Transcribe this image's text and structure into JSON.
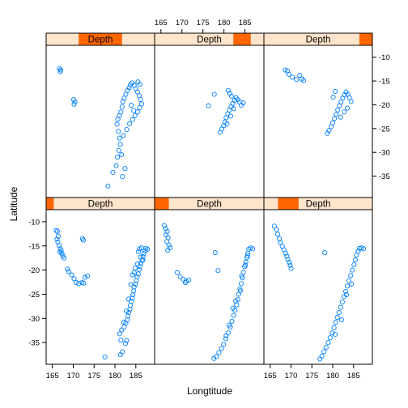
{
  "chart_data": {
    "type": "scatter",
    "title": "",
    "xlabel": "Longtitude",
    "ylabel": "Latitude",
    "strip_label": "Depth",
    "xlim": [
      163.5,
      189.5
    ],
    "ylim": [
      -39.5,
      -7.5
    ],
    "x_ticks": [
      165,
      170,
      175,
      180,
      185
    ],
    "y_ticks": [
      -10,
      -15,
      -20,
      -25,
      -30,
      -35
    ],
    "colors": {
      "points": "#0080ff",
      "strip_background": "#ffe5cc",
      "strip_range": "#ff6600",
      "axis": "#000000"
    },
    "layout": "3 columns x 2 rows, panels filled from bottom-left",
    "panels": [
      {
        "strip_range": [
          0.0,
          0.07
        ],
        "points": [
          [
            165.9,
            -11.8
          ],
          [
            166.2,
            -12.0
          ],
          [
            166.4,
            -13.0
          ],
          [
            166.1,
            -13.6
          ],
          [
            166.3,
            -14.2
          ],
          [
            166.6,
            -14.9
          ],
          [
            166.9,
            -15.6
          ],
          [
            167.1,
            -16.0
          ],
          [
            167.3,
            -16.6
          ],
          [
            167.5,
            -17.1
          ],
          [
            166.8,
            -16.3
          ],
          [
            167.8,
            -17.5
          ],
          [
            168.6,
            -19.8
          ],
          [
            168.9,
            -20.3
          ],
          [
            169.6,
            -21.0
          ],
          [
            170.2,
            -21.8
          ],
          [
            170.7,
            -22.6
          ],
          [
            171.3,
            -22.8
          ],
          [
            172.1,
            -22.6
          ],
          [
            172.5,
            -22.7
          ],
          [
            172.8,
            -21.5
          ],
          [
            173.4,
            -21.2
          ],
          [
            172.2,
            -13.5
          ],
          [
            172.4,
            -13.8
          ],
          [
            181.3,
            -37.5
          ],
          [
            181.8,
            -36.9
          ],
          [
            182.5,
            -35.2
          ],
          [
            182.8,
            -34.6
          ],
          [
            181.1,
            -33.2
          ],
          [
            181.6,
            -32.4
          ],
          [
            182.2,
            -31.8
          ],
          [
            182.6,
            -31.0
          ],
          [
            183.0,
            -30.3
          ],
          [
            183.1,
            -29.5
          ],
          [
            183.3,
            -28.8
          ],
          [
            183.6,
            -28.1
          ],
          [
            183.7,
            -27.3
          ],
          [
            183.9,
            -26.5
          ],
          [
            184.1,
            -25.8
          ],
          [
            184.3,
            -25.1
          ],
          [
            184.5,
            -24.3
          ],
          [
            184.6,
            -23.5
          ],
          [
            184.9,
            -22.9
          ],
          [
            185.1,
            -22.2
          ],
          [
            185.3,
            -21.4
          ],
          [
            185.6,
            -20.8
          ],
          [
            185.8,
            -19.9
          ],
          [
            186.0,
            -19.3
          ],
          [
            186.2,
            -18.6
          ],
          [
            186.5,
            -18.0
          ],
          [
            186.7,
            -17.2
          ],
          [
            186.9,
            -16.6
          ],
          [
            187.2,
            -16.0
          ],
          [
            187.4,
            -15.5
          ],
          [
            185.9,
            -15.6
          ],
          [
            186.4,
            -15.4
          ],
          [
            187.8,
            -15.7
          ],
          [
            186.7,
            -17.9
          ],
          [
            185.4,
            -18.7
          ],
          [
            184.8,
            -19.6
          ],
          [
            184.2,
            -21.0
          ],
          [
            183.8,
            -23.0
          ],
          [
            183.3,
            -26.0
          ],
          [
            182.7,
            -28.5
          ],
          [
            182.1,
            -30.8
          ],
          [
            181.4,
            -34.5
          ],
          [
            177.6,
            -38.0
          ],
          [
            185.6,
            -16.2
          ],
          [
            186.1,
            -17.3
          ],
          [
            184.6,
            -20.5
          ]
        ]
      },
      {
        "strip_range": [
          0.0,
          0.13
        ],
        "points": [
          [
            165.8,
            -10.8
          ],
          [
            166.1,
            -11.4
          ],
          [
            166.5,
            -12.0
          ],
          [
            166.2,
            -12.7
          ],
          [
            166.7,
            -13.3
          ],
          [
            166.4,
            -14.1
          ],
          [
            166.9,
            -14.8
          ],
          [
            167.2,
            -15.4
          ],
          [
            166.6,
            -15.9
          ],
          [
            168.9,
            -20.5
          ],
          [
            169.6,
            -21.4
          ],
          [
            170.3,
            -21.9
          ],
          [
            171.0,
            -22.3
          ],
          [
            171.6,
            -22.1
          ],
          [
            170.8,
            -22.6
          ],
          [
            177.9,
            -16.4
          ],
          [
            178.6,
            -20.1
          ],
          [
            177.6,
            -38.3
          ],
          [
            178.2,
            -37.9
          ],
          [
            178.8,
            -37.1
          ],
          [
            179.4,
            -36.2
          ],
          [
            179.9,
            -35.4
          ],
          [
            180.4,
            -34.2
          ],
          [
            181.0,
            -33.0
          ],
          [
            181.5,
            -31.8
          ],
          [
            181.9,
            -30.6
          ],
          [
            182.3,
            -29.4
          ],
          [
            182.6,
            -28.3
          ],
          [
            183.0,
            -27.2
          ],
          [
            183.3,
            -26.1
          ],
          [
            183.5,
            -25.0
          ],
          [
            183.8,
            -23.9
          ],
          [
            184.1,
            -22.8
          ],
          [
            184.4,
            -21.6
          ],
          [
            184.6,
            -20.5
          ],
          [
            184.9,
            -19.3
          ],
          [
            185.2,
            -18.3
          ],
          [
            185.5,
            -17.4
          ],
          [
            185.7,
            -16.5
          ],
          [
            185.9,
            -15.7
          ],
          [
            186.3,
            -15.4
          ],
          [
            186.8,
            -15.6
          ],
          [
            182.1,
            -27.9
          ],
          [
            182.8,
            -26.4
          ],
          [
            183.9,
            -24.3
          ],
          [
            184.2,
            -21.2
          ],
          [
            185.1,
            -19.0
          ],
          [
            185.6,
            -17.0
          ],
          [
            181.2,
            -31.4
          ],
          [
            180.5,
            -33.6
          ]
        ]
      },
      {
        "strip_range": [
          0.13,
          0.32
        ],
        "points": [
          [
            166.0,
            -10.9
          ],
          [
            166.5,
            -11.6
          ],
          [
            166.8,
            -12.6
          ],
          [
            167.2,
            -13.5
          ],
          [
            167.5,
            -14.3
          ],
          [
            167.9,
            -15.1
          ],
          [
            168.3,
            -15.8
          ],
          [
            168.7,
            -16.5
          ],
          [
            169.0,
            -17.1
          ],
          [
            169.2,
            -17.8
          ],
          [
            169.6,
            -18.4
          ],
          [
            169.8,
            -19.0
          ],
          [
            170.0,
            -19.7
          ],
          [
            178.1,
            -16.4
          ],
          [
            176.9,
            -38.4
          ],
          [
            177.4,
            -37.8
          ],
          [
            177.9,
            -36.9
          ],
          [
            178.4,
            -36.0
          ],
          [
            178.9,
            -35.0
          ],
          [
            179.4,
            -34.0
          ],
          [
            179.9,
            -33.0
          ],
          [
            180.3,
            -31.9
          ],
          [
            180.7,
            -30.8
          ],
          [
            181.1,
            -29.8
          ],
          [
            181.5,
            -28.8
          ],
          [
            181.9,
            -27.7
          ],
          [
            182.3,
            -26.6
          ],
          [
            182.7,
            -25.5
          ],
          [
            183.1,
            -24.4
          ],
          [
            183.5,
            -23.3
          ],
          [
            183.9,
            -22.2
          ],
          [
            184.3,
            -21.1
          ],
          [
            184.7,
            -20.0
          ],
          [
            185.1,
            -18.9
          ],
          [
            185.4,
            -17.9
          ],
          [
            185.7,
            -16.9
          ],
          [
            186.1,
            -16.1
          ],
          [
            186.4,
            -15.5
          ],
          [
            186.9,
            -15.4
          ],
          [
            187.4,
            -15.6
          ],
          [
            183.3,
            -25.1
          ],
          [
            184.5,
            -22.9
          ],
          [
            182.1,
            -30.3
          ],
          [
            180.6,
            -33.3
          ]
        ]
      },
      {
        "strip_range": [
          0.3,
          0.7
        ],
        "points": [
          [
            166.7,
            -12.4
          ],
          [
            167.0,
            -12.7
          ],
          [
            166.9,
            -13.0
          ],
          [
            170.1,
            -18.9
          ],
          [
            170.4,
            -19.4
          ],
          [
            170.2,
            -19.9
          ],
          [
            178.3,
            -37.1
          ],
          [
            179.5,
            -34.2
          ],
          [
            180.3,
            -32.8
          ],
          [
            180.6,
            -31.0
          ],
          [
            180.9,
            -29.6
          ],
          [
            181.3,
            -28.3
          ],
          [
            181.1,
            -27.0
          ],
          [
            180.8,
            -25.6
          ],
          [
            180.5,
            -24.1
          ],
          [
            180.7,
            -23.0
          ],
          [
            181.0,
            -22.3
          ],
          [
            181.4,
            -21.5
          ],
          [
            181.7,
            -20.4
          ],
          [
            181.9,
            -19.3
          ],
          [
            182.2,
            -18.6
          ],
          [
            182.6,
            -17.8
          ],
          [
            183.0,
            -17.0
          ],
          [
            183.4,
            -16.4
          ],
          [
            183.7,
            -15.8
          ],
          [
            184.1,
            -15.4
          ],
          [
            184.6,
            -15.9
          ],
          [
            185.0,
            -16.6
          ],
          [
            185.4,
            -17.3
          ],
          [
            185.8,
            -18.1
          ],
          [
            186.1,
            -18.9
          ],
          [
            186.4,
            -19.8
          ],
          [
            185.9,
            -20.6
          ],
          [
            185.4,
            -21.5
          ],
          [
            184.8,
            -22.3
          ],
          [
            184.2,
            -23.1
          ],
          [
            183.5,
            -24.0
          ],
          [
            182.8,
            -25.2
          ],
          [
            182.0,
            -26.5
          ],
          [
            181.6,
            -30.5
          ],
          [
            182.4,
            -33.4
          ],
          [
            181.8,
            -35.1
          ],
          [
            185.5,
            -15.2
          ],
          [
            186.0,
            -15.7
          ],
          [
            183.9,
            -20.1
          ],
          [
            184.5,
            -21.2
          ]
        ]
      },
      {
        "strip_range": [
          0.72,
          0.88
        ],
        "points": [
          [
            176.3,
            -20.2
          ],
          [
            177.7,
            -17.8
          ],
          [
            179.1,
            -25.8
          ],
          [
            179.5,
            -25.1
          ],
          [
            179.9,
            -24.4
          ],
          [
            180.2,
            -23.6
          ],
          [
            180.5,
            -22.7
          ],
          [
            180.9,
            -21.9
          ],
          [
            181.3,
            -21.1
          ],
          [
            181.7,
            -20.4
          ],
          [
            182.1,
            -19.7
          ],
          [
            182.5,
            -19.1
          ],
          [
            182.9,
            -18.5
          ],
          [
            183.3,
            -18.9
          ],
          [
            183.7,
            -19.4
          ],
          [
            184.1,
            -20.1
          ],
          [
            184.6,
            -19.6
          ],
          [
            181.0,
            -17.0
          ],
          [
            181.4,
            -17.6
          ],
          [
            181.8,
            -18.2
          ],
          [
            182.3,
            -20.8
          ],
          [
            181.6,
            -22.4
          ],
          [
            180.7,
            -24.0
          ]
        ]
      },
      {
        "strip_range": [
          0.88,
          1.0
        ],
        "points": [
          [
            168.6,
            -12.7
          ],
          [
            169.1,
            -12.9
          ],
          [
            169.5,
            -13.6
          ],
          [
            170.3,
            -14.2
          ],
          [
            171.3,
            -14.7
          ],
          [
            172.1,
            -13.8
          ],
          [
            172.6,
            -14.6
          ],
          [
            173.0,
            -14.9
          ],
          [
            178.7,
            -26.0
          ],
          [
            179.1,
            -25.4
          ],
          [
            179.6,
            -24.6
          ],
          [
            180.0,
            -23.8
          ],
          [
            180.4,
            -22.9
          ],
          [
            180.8,
            -22.0
          ],
          [
            181.2,
            -21.1
          ],
          [
            181.6,
            -20.2
          ],
          [
            182.0,
            -19.4
          ],
          [
            182.4,
            -18.6
          ],
          [
            182.8,
            -17.9
          ],
          [
            183.2,
            -17.3
          ],
          [
            183.6,
            -17.8
          ],
          [
            184.0,
            -18.5
          ],
          [
            184.4,
            -19.3
          ],
          [
            183.5,
            -20.7
          ],
          [
            182.7,
            -21.5
          ],
          [
            181.9,
            -22.6
          ],
          [
            180.1,
            -18.4
          ],
          [
            180.6,
            -17.2
          ]
        ]
      }
    ]
  }
}
